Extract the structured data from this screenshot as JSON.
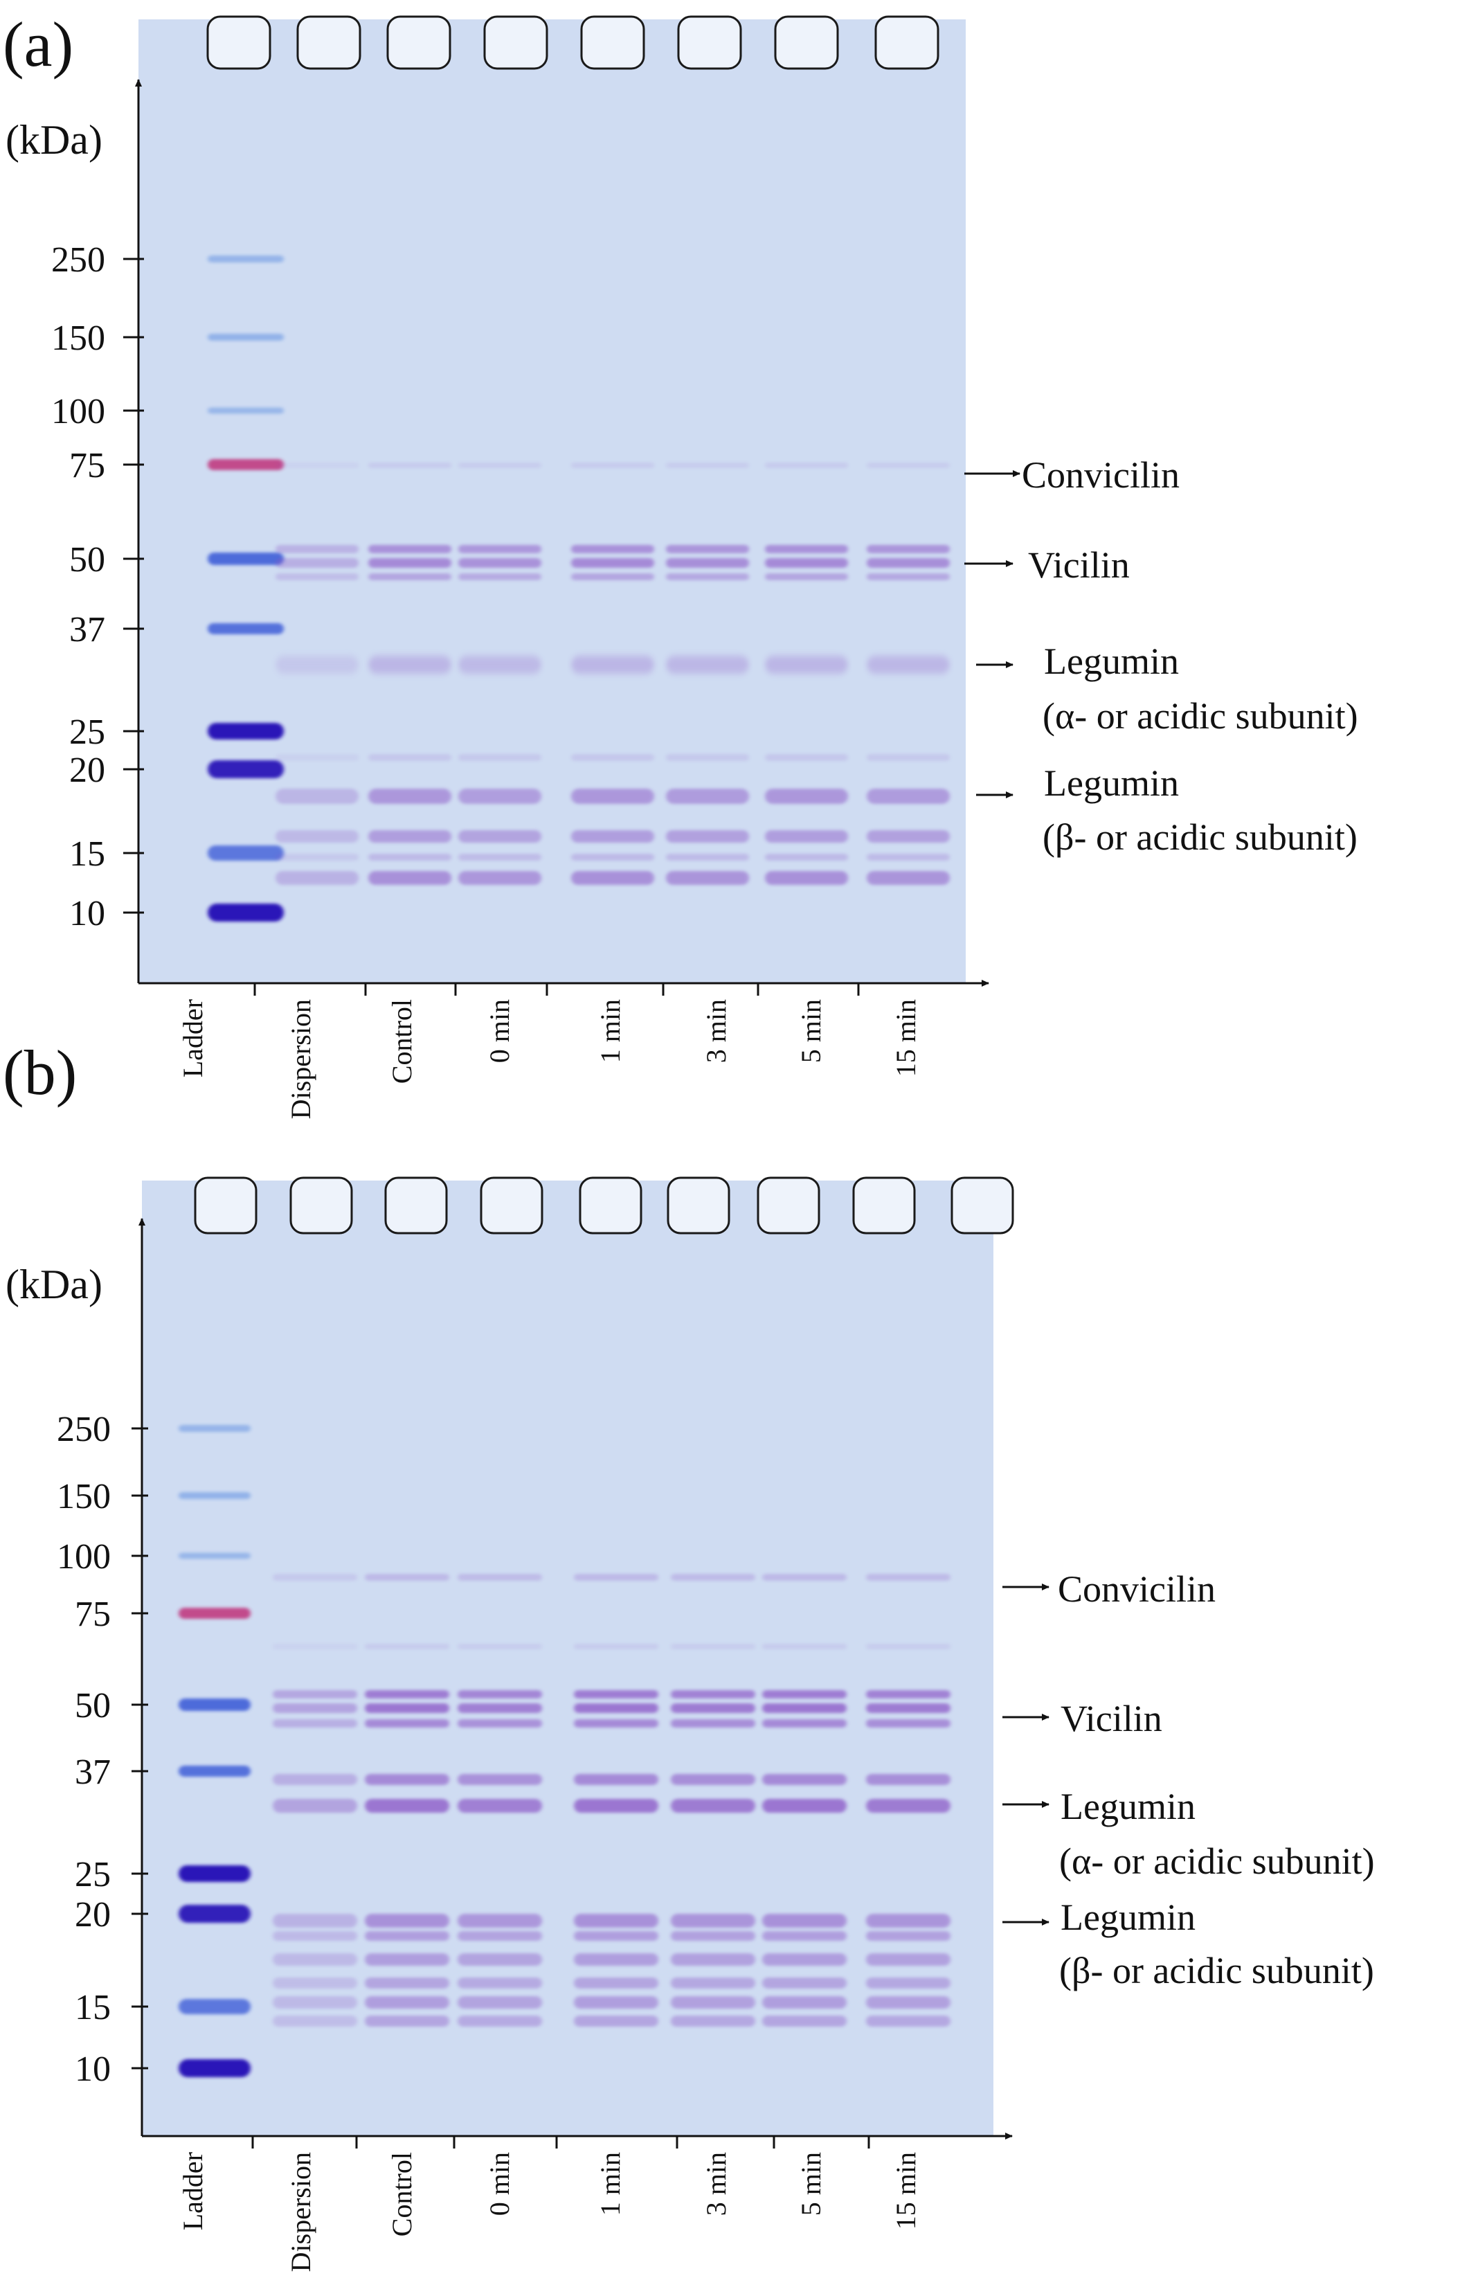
{
  "figure": {
    "panels": [
      {
        "id": "a",
        "label": "(a)",
        "unit_label": "(kDa)",
        "mw_markers": [
          "250",
          "150",
          "100",
          "75",
          "50",
          "37",
          "25",
          "20",
          "15",
          "10"
        ],
        "lanes": [
          "Ladder",
          "Dispersion",
          "Control",
          "0 min",
          "1 min",
          "3 min",
          "5 min",
          "15 min"
        ],
        "annotations": [
          {
            "text": "Convicilin"
          },
          {
            "text": "Vicilin"
          },
          {
            "text": "Legumin",
            "subtext": "(α- or acidic subunit)"
          },
          {
            "text": "Legumin",
            "subtext": "(β- or acidic subunit)"
          }
        ]
      },
      {
        "id": "b",
        "label": "(b)",
        "unit_label": "(kDa)",
        "mw_markers": [
          "250",
          "150",
          "100",
          "75",
          "50",
          "37",
          "25",
          "20",
          "15",
          "10"
        ],
        "lanes": [
          "Ladder",
          "Dispersion",
          "Control",
          "0 min",
          "1 min",
          "3 min",
          "5 min",
          "15 min"
        ],
        "annotations": [
          {
            "text": "Convicilin"
          },
          {
            "text": "Vicilin"
          },
          {
            "text": "Legumin",
            "subtext": "(α- or acidic subunit)"
          },
          {
            "text": "Legumin",
            "subtext": "(β- or acidic subunit)"
          }
        ]
      }
    ],
    "colors": {
      "gel_background": "#cfdcf2",
      "gel_background_edge": "#d8e3f5",
      "well": "#eef3fb",
      "well_outline": "#1a1a1a",
      "ladder_blue": "#3f5fd8",
      "ladder_light": "#8fb0e8",
      "ladder_dark": "#2a18b8",
      "ladder_pink": "#c0307a",
      "band_purple": "#8a55c6",
      "band_purple_faint": "#b79ad8",
      "axis": "#111111"
    }
  }
}
